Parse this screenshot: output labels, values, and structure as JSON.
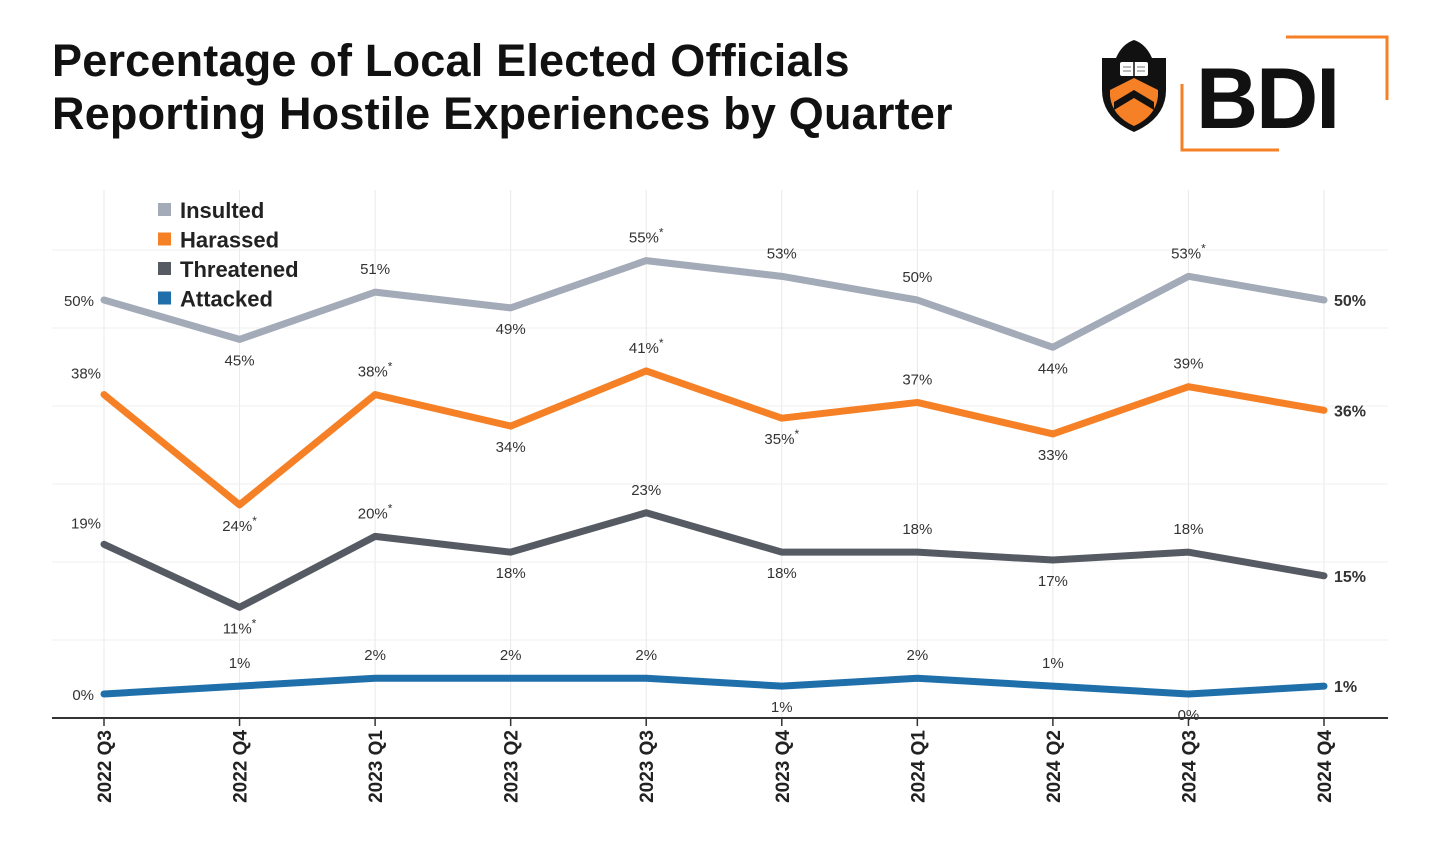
{
  "title_line1": "Percentage of Local Elected Officials",
  "title_line2": "Reporting Hostile Experiences by Quarter",
  "logo": {
    "text": "BDI",
    "accent_color": "#f58025"
  },
  "chart_data": {
    "type": "line",
    "title": "Percentage of Local Elected Officials Reporting Hostile Experiences by Quarter",
    "x": [
      "2022 Q3",
      "2022 Q4",
      "2023 Q1",
      "2023 Q2",
      "2023 Q3",
      "2023 Q4",
      "2024 Q1",
      "2024 Q2",
      "2024 Q3",
      "2024 Q4"
    ],
    "ylim": [
      -2,
      62
    ],
    "grid": true,
    "legend_position": "top-left",
    "series": [
      {
        "name": "Insulted",
        "color": "#a3aab8",
        "values": [
          50,
          45,
          51,
          49,
          55,
          53,
          50,
          44,
          53,
          50
        ],
        "labels": [
          "50%",
          "45%",
          "51%",
          "49%",
          "55%*",
          "53%",
          "50%",
          "44%",
          "53%*",
          "50%"
        ]
      },
      {
        "name": "Harassed",
        "color": "#f58025",
        "values": [
          38,
          24,
          38,
          34,
          41,
          35,
          37,
          33,
          39,
          36
        ],
        "labels": [
          "38%",
          "24%*",
          "38%*",
          "34%",
          "41%*",
          "35%*",
          "37%",
          "33%",
          "39%",
          "36%"
        ]
      },
      {
        "name": "Threatened",
        "color": "#555a63",
        "values": [
          19,
          11,
          20,
          18,
          23,
          18,
          18,
          17,
          18,
          15
        ],
        "labels": [
          "19%",
          "11%*",
          "20%*",
          "18%",
          "23%",
          "18%",
          "18%",
          "17%",
          "18%",
          "15%"
        ]
      },
      {
        "name": "Attacked",
        "color": "#1f6fab",
        "values": [
          0,
          1,
          2,
          2,
          2,
          1,
          2,
          1,
          0,
          1
        ],
        "labels": [
          "0%",
          "1%",
          "2%",
          "2%",
          "2%",
          "1%",
          "2%",
          "1%",
          "0%",
          "1%"
        ]
      }
    ]
  }
}
